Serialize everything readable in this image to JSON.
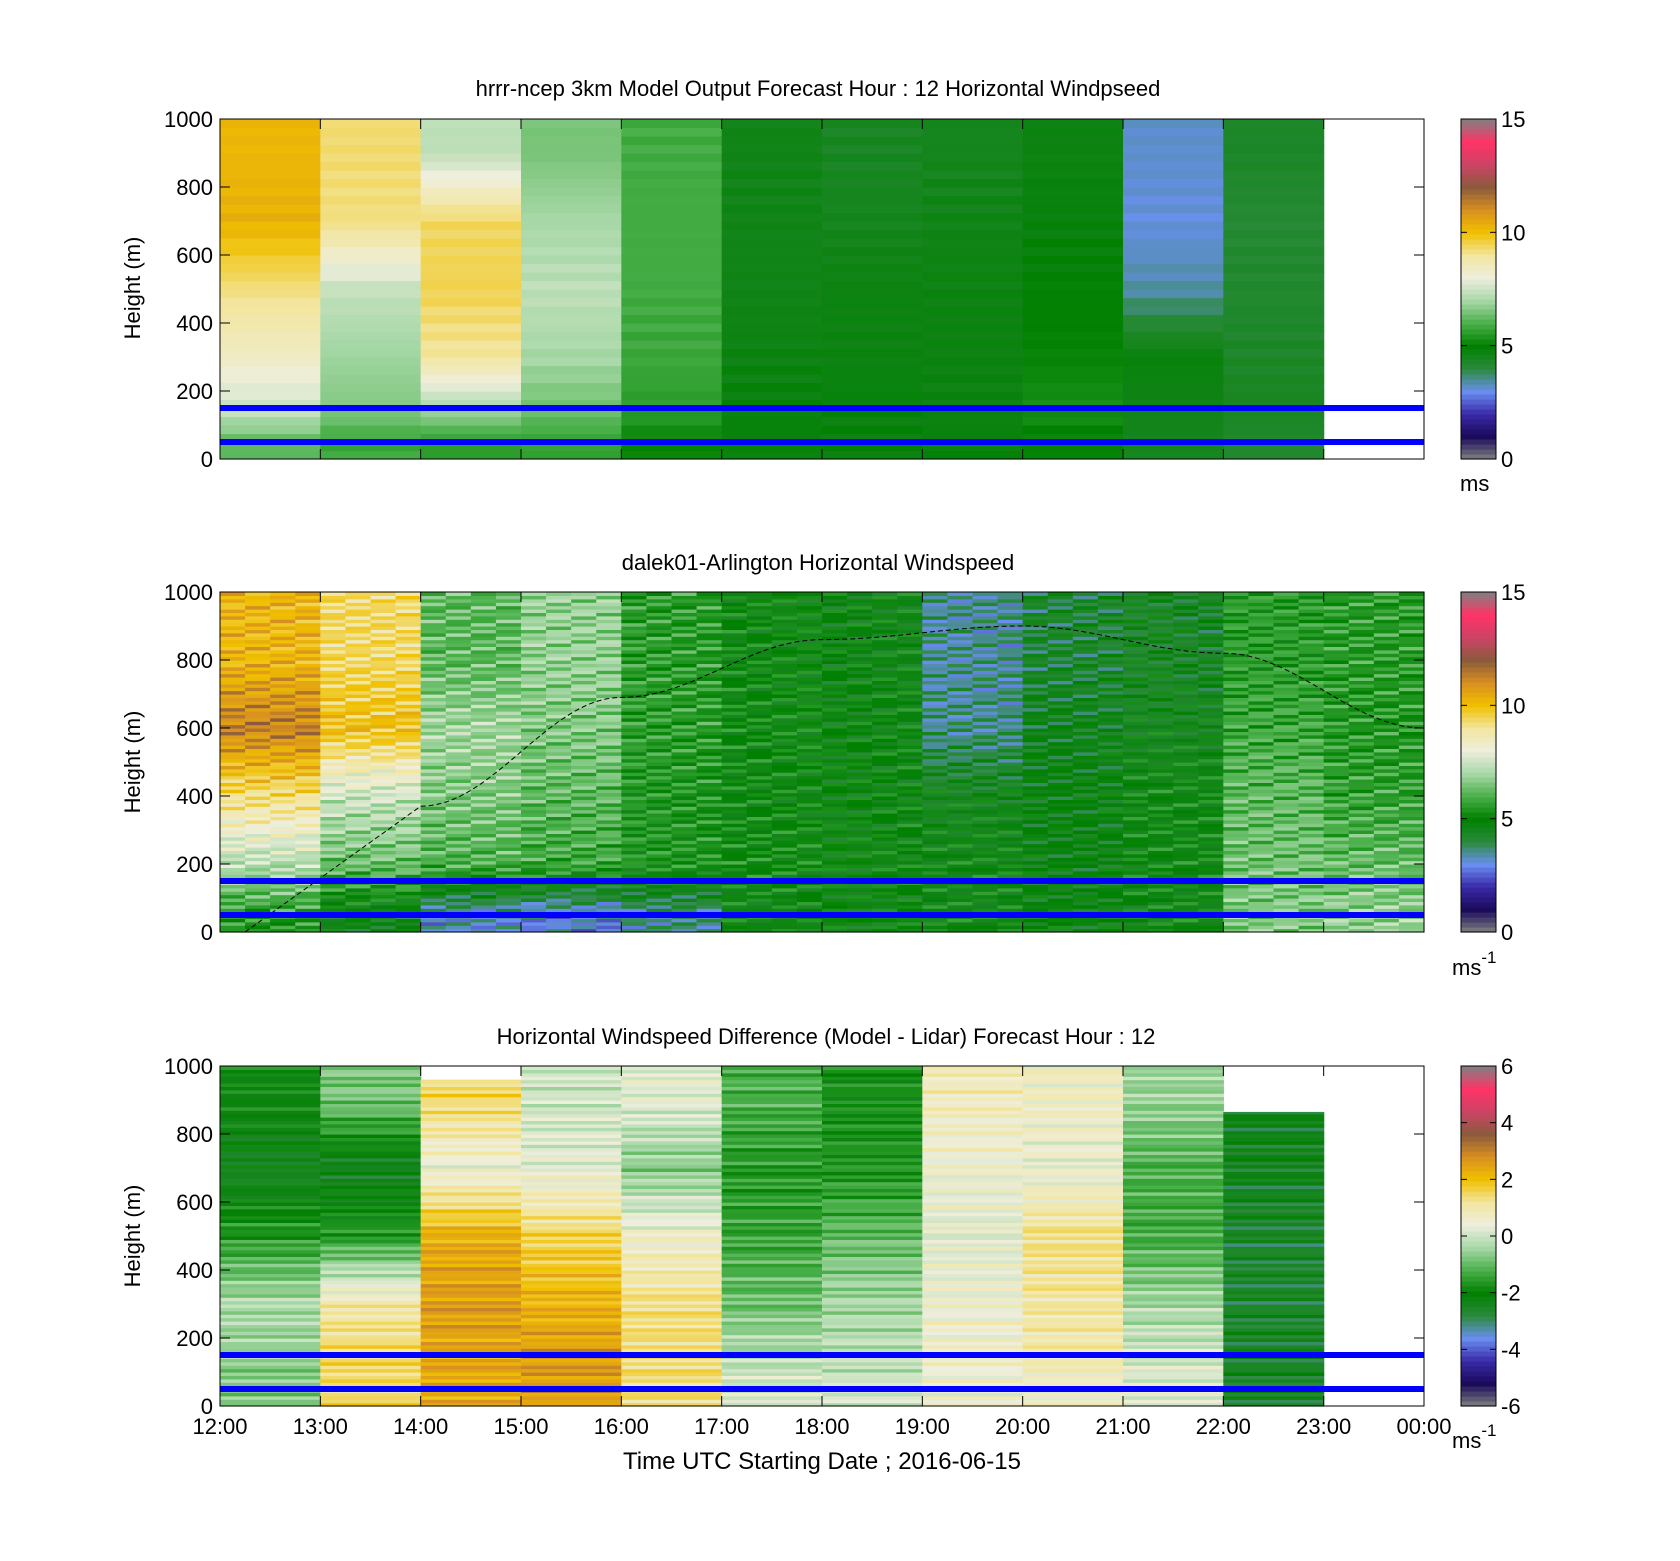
{
  "figure": {
    "xlabel": "Time UTC  Starting Date ; 2016-06-15",
    "x_tick_labels": [
      "12:00",
      "13:00",
      "14:00",
      "15:00",
      "16:00",
      "17:00",
      "18:00",
      "19:00",
      "20:00",
      "21:00",
      "22:00",
      "23:00",
      "00:00"
    ]
  },
  "panels": [
    {
      "title": "hrrr-ncep 3km Model Output   Forecast Hour : 12 Horizontal Windpseed",
      "ylabel": "Height (m)",
      "y_tick_labels": [
        "0",
        "200",
        "400",
        "600",
        "800",
        "1000"
      ],
      "colorbar": {
        "ticks": [
          "0",
          "5",
          "10",
          "15"
        ],
        "unit": "ms",
        "unit_sup": ""
      }
    },
    {
      "title": "dalek01-Arlington  Horizontal Windspeed",
      "ylabel": "Height (m)",
      "y_tick_labels": [
        "0",
        "200",
        "400",
        "600",
        "800",
        "1000"
      ],
      "colorbar": {
        "ticks": [
          "0",
          "5",
          "10",
          "15"
        ],
        "unit": "ms",
        "unit_sup": "-1"
      }
    },
    {
      "title": "Horizontal Windspeed Difference (Model - Lidar) Forecast Hour : 12",
      "ylabel": "Height (m)",
      "y_tick_labels": [
        "0",
        "200",
        "400",
        "600",
        "800",
        "1000"
      ],
      "colorbar": {
        "ticks": [
          "-6",
          "-4",
          "-2",
          "0",
          "2",
          "4",
          "6"
        ],
        "unit": "ms",
        "unit_sup": "-1"
      }
    }
  ],
  "colors": {
    "line_color": "#0000ff",
    "colormap": [
      "#808080",
      "#1a0a5a",
      "#3a2aa8",
      "#6a8ff0",
      "#2a8a3a",
      "#008000",
      "#4ab04a",
      "#a8d8a8",
      "#eeeedd",
      "#f2e6a0",
      "#f0c000",
      "#d89020",
      "#8b5a3c",
      "#cc4466",
      "#ff3366",
      "#808080"
    ]
  },
  "chart_data": [
    {
      "type": "heatmap",
      "title": "hrrr-ncep 3km Model Output   Forecast Hour : 12 Horizontal Windpseed",
      "ylabel": "Height (m)",
      "xlim": [
        "12:00",
        "00:00"
      ],
      "ylim": [
        0,
        1000
      ],
      "clim": [
        0,
        15
      ],
      "colorbar_unit": "ms",
      "reference_lines_height_m": [
        50,
        150
      ],
      "columns": [
        {
          "time": "12:00",
          "speed_by_height": {
            "50": 6.2,
            "150": 7.5,
            "300": 8.4,
            "500": 9.2,
            "700": 10.3,
            "900": 10.2
          }
        },
        {
          "time": "13:00",
          "speed_by_height": {
            "50": 5.8,
            "150": 6.6,
            "300": 6.9,
            "500": 7.4,
            "700": 9.2,
            "900": 9.3
          }
        },
        {
          "time": "14:00",
          "speed_by_height": {
            "50": 5.6,
            "150": 7.0,
            "300": 9.0,
            "500": 9.5,
            "700": 9.4,
            "900": 7.3
          }
        },
        {
          "time": "15:00",
          "speed_by_height": {
            "50": 5.7,
            "150": 6.4,
            "300": 7.0,
            "500": 7.3,
            "700": 7.0,
            "900": 6.5
          }
        },
        {
          "time": "16:00",
          "speed_by_height": {
            "50": 5.1,
            "150": 5.6,
            "300": 5.8,
            "500": 5.9,
            "700": 5.9,
            "900": 5.9
          }
        },
        {
          "time": "17:00",
          "speed_by_height": {
            "50": 4.8,
            "150": 4.8,
            "300": 4.7,
            "500": 4.6,
            "700": 4.6,
            "900": 4.6
          }
        },
        {
          "time": "18:00",
          "speed_by_height": {
            "50": 4.8,
            "150": 4.8,
            "300": 4.7,
            "500": 4.7,
            "700": 4.5,
            "900": 4.4
          }
        },
        {
          "time": "19:00",
          "speed_by_height": {
            "50": 4.8,
            "150": 4.7,
            "300": 4.7,
            "500": 4.7,
            "700": 4.6,
            "900": 4.5
          }
        },
        {
          "time": "20:00",
          "speed_by_height": {
            "50": 5.0,
            "150": 5.3,
            "300": 5.1,
            "500": 4.9,
            "700": 4.8,
            "900": 4.7
          }
        },
        {
          "time": "21:00",
          "speed_by_height": {
            "50": 4.5,
            "150": 4.6,
            "300": 4.8,
            "500": 3.4,
            "700": 3.1,
            "900": 3.2
          }
        },
        {
          "time": "22:00",
          "speed_by_height": {
            "50": 4.2,
            "150": 4.4,
            "300": 4.3,
            "500": 4.2,
            "700": 4.1,
            "900": 4.3
          }
        }
      ]
    },
    {
      "type": "heatmap",
      "title": "dalek01-Arlington  Horizontal Windspeed",
      "ylabel": "Height (m)",
      "xlim": [
        "12:00",
        "00:00"
      ],
      "ylim": [
        0,
        1000
      ],
      "clim": [
        0,
        15
      ],
      "colorbar_unit": "ms-1",
      "reference_lines_height_m": [
        50,
        150
      ],
      "dashed_curve": {
        "time": [
          "12:15",
          "14:00",
          "16:00",
          "18:00",
          "20:00",
          "22:00",
          "00:00"
        ],
        "height_m": [
          0,
          370,
          690,
          860,
          900,
          820,
          600
        ]
      },
      "columns": [
        {
          "time": "12:00",
          "speed_by_height": {
            "50": 5.5,
            "200": 7.2,
            "400": 9.2,
            "600": 11.3,
            "800": 10.2
          }
        },
        {
          "time": "13:00",
          "speed_by_height": {
            "50": 4.6,
            "200": 6.3,
            "400": 7.5,
            "600": 10.0,
            "800": 9.3
          }
        },
        {
          "time": "14:00",
          "speed_by_height": {
            "50": 3.2,
            "200": 6.0,
            "400": 6.6,
            "600": 7.0,
            "800": 6.2
          }
        },
        {
          "time": "15:00",
          "speed_by_height": {
            "50": 3.0,
            "200": 5.8,
            "400": 6.2,
            "600": 6.6,
            "800": 6.8
          }
        },
        {
          "time": "16:00",
          "speed_by_height": {
            "50": 3.6,
            "200": 5.4,
            "400": 5.4,
            "600": 5.6,
            "800": 5.6
          }
        },
        {
          "time": "17:00",
          "speed_by_height": {
            "50": 4.8,
            "200": 5.2,
            "400": 5.0,
            "600": 5.1,
            "800": 5.0
          }
        },
        {
          "time": "18:00",
          "speed_by_height": {
            "50": 4.9,
            "200": 5.0,
            "400": 4.9,
            "600": 4.9,
            "800": 4.8
          }
        },
        {
          "time": "19:00",
          "speed_by_height": {
            "50": 4.9,
            "200": 4.9,
            "400": 4.6,
            "600": 3.6,
            "800": 3.5
          }
        },
        {
          "time": "20:00",
          "speed_by_height": {
            "50": 4.8,
            "200": 4.7,
            "400": 4.7,
            "600": 4.5,
            "800": 4.2
          }
        },
        {
          "time": "21:00",
          "speed_by_height": {
            "50": 4.9,
            "200": 5.0,
            "400": 5.0,
            "600": 4.6,
            "800": 4.4
          }
        },
        {
          "time": "22:00",
          "speed_by_height": {
            "50": 6.6,
            "200": 6.4,
            "400": 6.2,
            "600": 5.8,
            "800": 5.5
          }
        },
        {
          "time": "23:00",
          "speed_by_height": {
            "50": 6.8,
            "200": 6.3,
            "400": 5.7,
            "600": 5.5,
            "800": 5.6
          }
        }
      ]
    },
    {
      "type": "heatmap",
      "title": "Horizontal Windspeed Difference (Model - Lidar) Forecast Hour : 12",
      "ylabel": "Height (m)",
      "xlabel": "Time UTC  Starting Date ; 2016-06-15",
      "xlim": [
        "12:00",
        "00:00"
      ],
      "ylim": [
        0,
        1000
      ],
      "clim": [
        -6,
        6
      ],
      "colorbar_unit": "ms-1",
      "reference_lines_height_m": [
        50,
        150
      ],
      "columns": [
        {
          "time": "12:00",
          "top_m": 1000,
          "diff_by_height": {
            "50": -0.8,
            "150": -0.6,
            "300": -0.3,
            "500": -1.6,
            "700": -2.4,
            "900": -2.0
          }
        },
        {
          "time": "13:00",
          "top_m": 1000,
          "diff_by_height": {
            "50": 1.5,
            "150": 1.5,
            "300": 1.0,
            "500": -1.6,
            "700": -2.5,
            "900": -0.8
          }
        },
        {
          "time": "14:00",
          "top_m": 960,
          "diff_by_height": {
            "50": 2.4,
            "150": 2.4,
            "300": 2.6,
            "500": 2.3,
            "700": 0.4,
            "900": 1.5
          }
        },
        {
          "time": "15:00",
          "top_m": 1000,
          "diff_by_height": {
            "50": 2.6,
            "150": 2.6,
            "300": 2.2,
            "500": 1.6,
            "700": 0.3,
            "900": 0.0
          }
        },
        {
          "time": "16:00",
          "top_m": 1000,
          "diff_by_height": {
            "50": 1.4,
            "150": 1.4,
            "300": 1.3,
            "500": 0.6,
            "700": -0.7,
            "900": 0.3
          }
        },
        {
          "time": "17:00",
          "top_m": 1000,
          "diff_by_height": {
            "50": 0.1,
            "150": -0.2,
            "300": -0.9,
            "500": -1.4,
            "700": -1.6,
            "900": -1.2
          }
        },
        {
          "time": "18:00",
          "top_m": 1000,
          "diff_by_height": {
            "50": 0.0,
            "150": -0.2,
            "300": -0.4,
            "500": -1.0,
            "700": -1.7,
            "900": -1.8
          }
        },
        {
          "time": "19:00",
          "top_m": 1000,
          "diff_by_height": {
            "50": 0.5,
            "150": 0.6,
            "300": 0.5,
            "500": 0.3,
            "700": 0.5,
            "900": 0.8
          }
        },
        {
          "time": "20:00",
          "top_m": 1000,
          "diff_by_height": {
            "50": 0.6,
            "150": 1.0,
            "300": 1.1,
            "500": 1.3,
            "700": 0.4,
            "900": 0.7
          }
        },
        {
          "time": "21:00",
          "top_m": 1000,
          "diff_by_height": {
            "50": 0.3,
            "150": 0.0,
            "300": -0.4,
            "500": -1.3,
            "700": -1.2,
            "900": -0.5
          }
        },
        {
          "time": "22:00",
          "top_m": 865,
          "diff_by_height": {
            "50": -2.5,
            "150": -2.5,
            "300": -2.6,
            "500": -2.6,
            "700": -2.4,
            "900": null
          }
        }
      ]
    }
  ]
}
